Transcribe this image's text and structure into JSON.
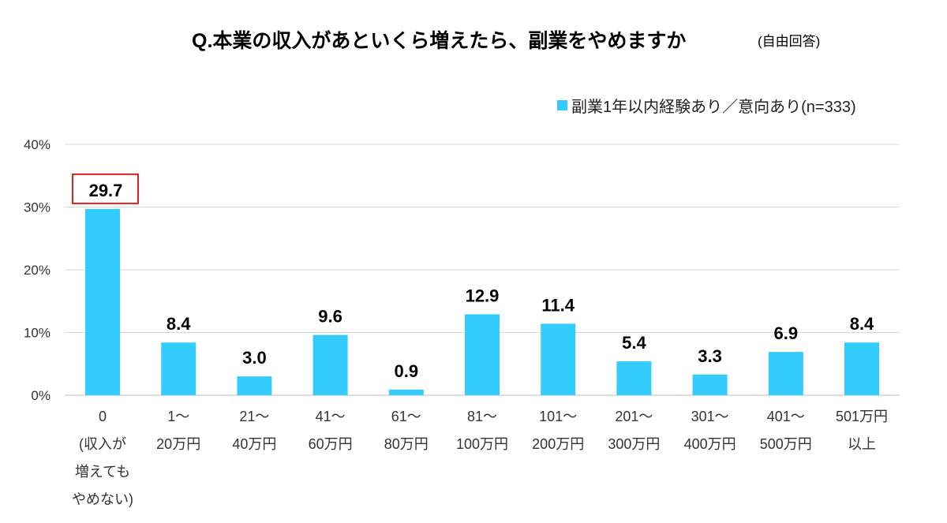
{
  "chart_data": {
    "type": "bar",
    "title": "Q.本業の収入があといくら増えたら、副業をやめますか",
    "subtitle": "(自由回答)",
    "categories": [
      "0\n(収入が\n増えても\nやめない)",
      "1～\n20万円",
      "21～\n40万円",
      "41～\n60万円",
      "61～\n80万円",
      "81～\n100万円",
      "101～\n200万円",
      "201～\n300万円",
      "301～\n400万円",
      "401～\n500万円",
      "501万円\n以上"
    ],
    "series": [
      {
        "name": "副業1年以内経験あり／意向あり(n=333)",
        "values": [
          29.7,
          8.4,
          3.0,
          9.6,
          0.9,
          12.9,
          11.4,
          5.4,
          3.3,
          6.9,
          8.4
        ],
        "color": "#33ccff"
      }
    ],
    "data_labels": [
      "29.7",
      "8.4",
      "3.0",
      "9.6",
      "0.9",
      "12.9",
      "11.4",
      "5.4",
      "3.3",
      "6.9",
      "8.4"
    ],
    "highlight_index": 0,
    "highlight_color": "#e02020",
    "yticks": [
      "0%",
      "10%",
      "20%",
      "30%",
      "40%"
    ],
    "ylim": [
      0,
      40
    ],
    "grid": true,
    "legend_position": "top-right",
    "xlabel": "",
    "ylabel": ""
  }
}
